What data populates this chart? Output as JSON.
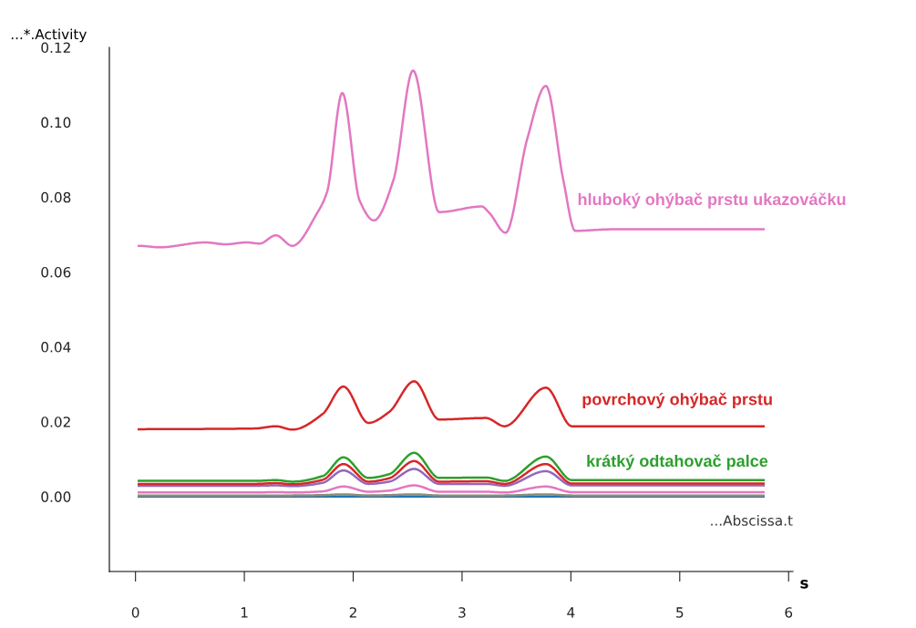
{
  "chart_data": {
    "type": "line",
    "ylabel": "...*.Activity",
    "xlabel": "s",
    "annotations": [
      "...Abscissa.t"
    ],
    "xlim": [
      -0.24,
      6.04
    ],
    "xticks": [
      0,
      1,
      2,
      3,
      4,
      5,
      6
    ],
    "ylim": [
      -0.02,
      0.12
    ],
    "yticks": [
      {
        "value": 0,
        "label": "0.00"
      },
      {
        "value": 0.02,
        "label": "0.02"
      },
      {
        "value": 0.04,
        "label": "0.04"
      },
      {
        "value": 0.06,
        "label": "0.06"
      },
      {
        "value": 0.08,
        "label": "0.08"
      },
      {
        "value": 0.1,
        "label": "0.10"
      },
      {
        "value": 0.12,
        "label": "0.12"
      }
    ],
    "grid": false,
    "legend": false,
    "marker": "none",
    "line_style": "solid",
    "series": [
      {
        "name": "hluboký ohýbač prstu ukazováčku",
        "color": "#e377c2",
        "x": [
          0.03,
          0.22,
          0.64,
          0.83,
          1.02,
          1.14,
          1.29,
          1.44,
          1.67,
          1.76,
          1.9,
          2.06,
          2.19,
          2.37,
          2.55,
          2.79,
          3.18,
          3.25,
          3.4,
          3.6,
          3.77,
          3.93,
          4.04,
          4.37,
          5.77
        ],
        "values": [
          0.067,
          0.0666,
          0.0679,
          0.0674,
          0.0679,
          0.0676,
          0.0698,
          0.067,
          0.0758,
          0.0814,
          0.1078,
          0.079,
          0.0738,
          0.0846,
          0.1138,
          0.076,
          0.0775,
          0.0758,
          0.0705,
          0.0957,
          0.1097,
          0.0846,
          0.071,
          0.0714,
          0.0714
        ]
      },
      {
        "name": "povrchový ohýbač prstu",
        "color": "#d62728",
        "x": [
          0.03,
          1.1,
          1.29,
          1.44,
          1.72,
          1.91,
          2.14,
          2.33,
          2.56,
          2.79,
          3.22,
          3.39,
          3.77,
          4.01,
          5.77
        ],
        "values": [
          0.018,
          0.0182,
          0.0188,
          0.0179,
          0.0221,
          0.0294,
          0.0197,
          0.0226,
          0.0308,
          0.0206,
          0.021,
          0.0188,
          0.0291,
          0.0188,
          0.0188
        ]
      },
      {
        "name": "krátký odtahovač palce",
        "color": "#2ca02c",
        "x": [
          0.03,
          1.1,
          1.29,
          1.44,
          1.72,
          1.91,
          2.14,
          2.33,
          2.56,
          2.79,
          3.22,
          3.39,
          3.77,
          4.01,
          5.77
        ],
        "values": [
          0.0042,
          0.0042,
          0.0044,
          0.004,
          0.0055,
          0.0105,
          0.005,
          0.006,
          0.0117,
          0.005,
          0.0051,
          0.0042,
          0.0107,
          0.0044,
          0.0044
        ]
      },
      {
        "color": "#d62728",
        "x": [
          0.03,
          1.1,
          1.29,
          1.44,
          1.72,
          1.91,
          2.14,
          2.33,
          2.56,
          2.79,
          3.22,
          3.39,
          3.77,
          4.01,
          5.77
        ],
        "values": [
          0.0034,
          0.0034,
          0.0036,
          0.0033,
          0.0045,
          0.0087,
          0.004,
          0.0049,
          0.0095,
          0.004,
          0.0041,
          0.0034,
          0.0087,
          0.0035,
          0.0035
        ]
      },
      {
        "color": "#9467bd",
        "x": [
          0.03,
          1.1,
          1.29,
          1.44,
          1.72,
          1.91,
          2.14,
          2.33,
          2.56,
          2.79,
          3.22,
          3.39,
          3.77,
          4.01,
          5.77
        ],
        "values": [
          0.0029,
          0.0029,
          0.003,
          0.0028,
          0.0037,
          0.007,
          0.0034,
          0.004,
          0.0074,
          0.0034,
          0.0034,
          0.0029,
          0.0068,
          0.003,
          0.003
        ]
      },
      {
        "color": "#e377c2",
        "x": [
          0.03,
          1.1,
          1.29,
          1.44,
          1.72,
          1.91,
          2.14,
          2.33,
          2.56,
          2.79,
          3.22,
          3.39,
          3.77,
          4.01,
          5.77
        ],
        "values": [
          0.0011,
          0.0011,
          0.0012,
          0.0011,
          0.0014,
          0.0027,
          0.0013,
          0.0016,
          0.003,
          0.0013,
          0.0013,
          0.0011,
          0.0027,
          0.0012,
          0.0012
        ]
      },
      {
        "color": "#8c8c7c",
        "x": [
          0.03,
          1.1,
          1.29,
          1.44,
          1.72,
          1.91,
          2.14,
          2.33,
          2.56,
          2.79,
          3.22,
          3.39,
          3.77,
          4.01,
          5.77
        ],
        "values": [
          0.0003,
          0.0003,
          0.0003,
          0.0003,
          0.0004,
          0.0006,
          0.0003,
          0.0004,
          0.0006,
          0.0003,
          0.0003,
          0.0003,
          0.0006,
          0.0003,
          0.0003
        ]
      },
      {
        "color": "#1f77b4",
        "x": [
          0.03,
          5.77
        ],
        "values": [
          0.0,
          0.0
        ]
      }
    ]
  }
}
